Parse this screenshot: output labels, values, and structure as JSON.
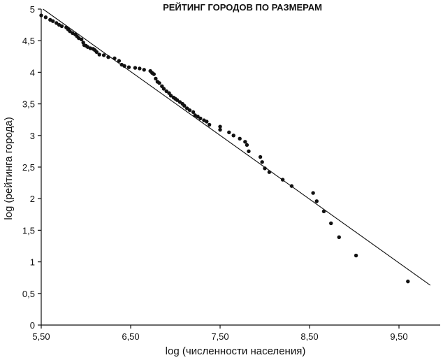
{
  "chart_data": {
    "type": "scatter",
    "title": "РЕЙТИНГ ГОРОДОВ ПО РАЗМЕРАМ",
    "xlabel": "log (численности населения)",
    "ylabel": "log (рейтинга города)",
    "xlim": [
      5.5,
      10.15
    ],
    "ylim": [
      0,
      5
    ],
    "x_ticks": [
      5.5,
      6.5,
      7.5,
      8.5,
      9.5
    ],
    "x_tick_labels": [
      "5,50",
      "6,50",
      "7,50",
      "8,50",
      "9,50"
    ],
    "y_ticks": [
      0,
      0.5,
      1,
      1.5,
      2,
      2.5,
      3,
      3.5,
      4,
      4.5,
      5
    ],
    "y_tick_labels": [
      "0",
      "0,5",
      "1",
      "1,5",
      "2",
      "2,5",
      "3",
      "3,5",
      "4",
      "4,5",
      "5"
    ],
    "grid": false,
    "legend": "none",
    "fit_line": {
      "x": [
        5.52,
        9.85
      ],
      "y": [
        5.0,
        0.63
      ]
    },
    "series": [
      {
        "x": [
          5.5,
          5.55,
          5.6,
          5.63,
          5.67,
          5.7,
          5.73,
          5.78,
          5.8,
          5.82,
          5.85,
          5.88,
          5.9,
          5.92,
          5.95,
          5.97,
          5.98,
          6.0,
          6.02,
          6.05,
          6.08,
          6.1,
          6.12,
          6.15,
          6.2,
          6.25,
          6.32,
          6.37,
          6.4,
          6.43,
          6.48,
          6.55,
          6.6,
          6.65,
          6.72,
          6.74,
          6.76,
          6.78,
          6.8,
          6.82,
          6.85,
          6.87,
          6.9,
          6.93,
          6.95,
          6.98,
          7.0,
          7.02,
          7.05,
          7.08,
          7.1,
          7.13,
          7.16,
          7.2,
          7.22,
          7.25,
          7.28,
          7.32,
          7.35,
          7.38,
          7.5,
          7.5,
          7.6,
          7.65,
          7.72,
          7.78,
          7.8,
          7.82,
          7.95,
          7.97,
          8.0,
          8.05,
          8.2,
          8.3,
          8.54,
          8.58,
          8.66,
          8.74,
          8.83,
          9.02,
          9.6
        ],
        "y": [
          4.9,
          4.87,
          4.83,
          4.81,
          4.78,
          4.75,
          4.73,
          4.71,
          4.68,
          4.65,
          4.62,
          4.6,
          4.57,
          4.54,
          4.52,
          4.47,
          4.43,
          4.42,
          4.4,
          4.38,
          4.37,
          4.35,
          4.32,
          4.28,
          4.27,
          4.24,
          4.22,
          4.18,
          4.12,
          4.1,
          4.08,
          4.07,
          4.06,
          4.04,
          4.02,
          3.99,
          3.97,
          3.9,
          3.85,
          3.83,
          3.78,
          3.74,
          3.7,
          3.67,
          3.63,
          3.6,
          3.58,
          3.56,
          3.53,
          3.5,
          3.47,
          3.43,
          3.4,
          3.37,
          3.32,
          3.3,
          3.27,
          3.24,
          3.22,
          3.17,
          3.14,
          3.09,
          3.05,
          3.0,
          2.95,
          2.9,
          2.85,
          2.75,
          2.66,
          2.58,
          2.48,
          2.42,
          2.3,
          2.2,
          2.09,
          1.96,
          1.8,
          1.61,
          1.39,
          1.1,
          0.69
        ]
      }
    ]
  }
}
